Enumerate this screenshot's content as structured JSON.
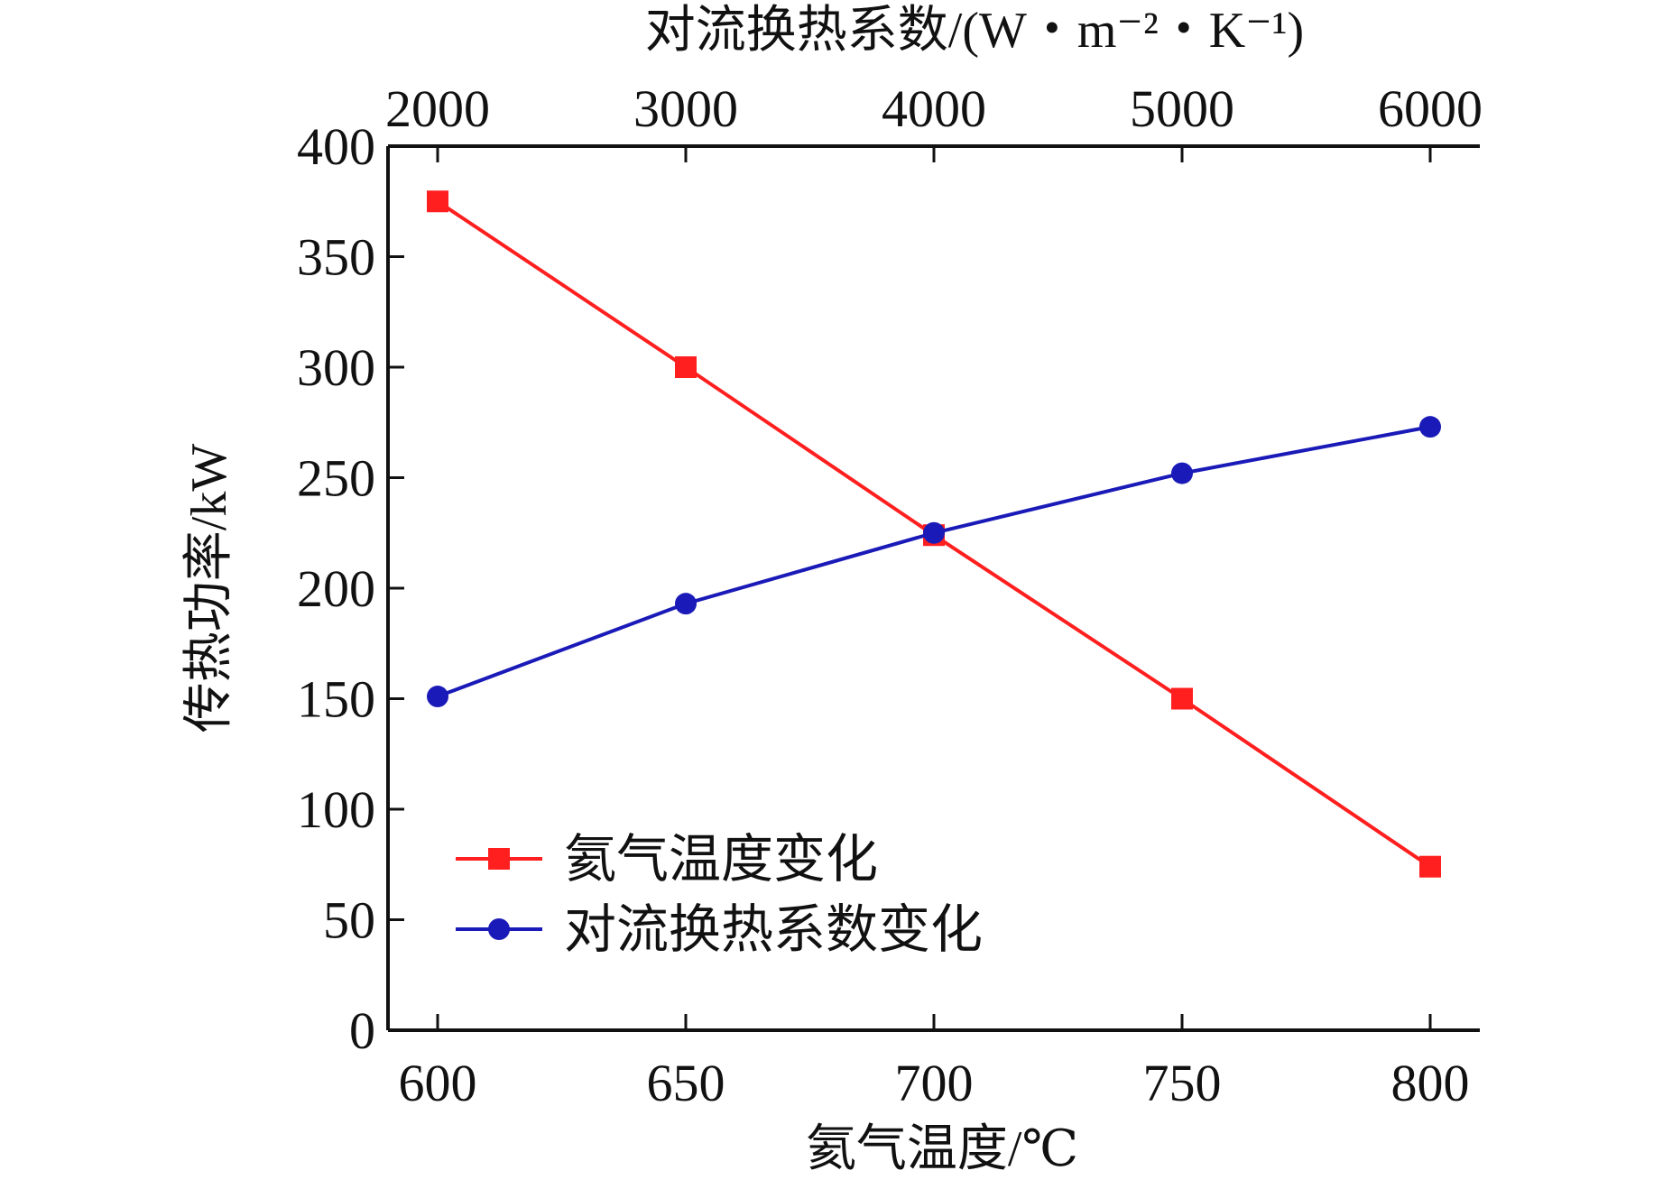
{
  "chart_data": {
    "type": "line",
    "xlabel": "氦气温度/℃",
    "ylabel": "传热功率/kW",
    "x2label": "对流换热系数/(W・m⁻²・K⁻¹)",
    "xlim": [
      590,
      810
    ],
    "ylim": [
      0,
      400
    ],
    "x2lim": [
      1800,
      6200
    ],
    "x_ticks": [
      600,
      650,
      700,
      750,
      800
    ],
    "x2_ticks": [
      2000,
      3000,
      4000,
      5000,
      6000
    ],
    "y_ticks": [
      0,
      50,
      100,
      150,
      200,
      250,
      300,
      350,
      400
    ],
    "grid": false,
    "legend_position": "lower-left",
    "series": [
      {
        "name": "氦气温度变化",
        "axis": "bottom",
        "marker": "square",
        "color": "#ff1f1f",
        "x": [
          600,
          650,
          700,
          750,
          800
        ],
        "y": [
          375,
          300,
          224,
          150,
          74
        ]
      },
      {
        "name": "对流换热系数变化",
        "axis": "top",
        "marker": "circle",
        "color": "#1a1ab8",
        "x": [
          2000,
          3000,
          4000,
          5000,
          6000
        ],
        "y": [
          151,
          193,
          225,
          252,
          273
        ]
      }
    ]
  }
}
